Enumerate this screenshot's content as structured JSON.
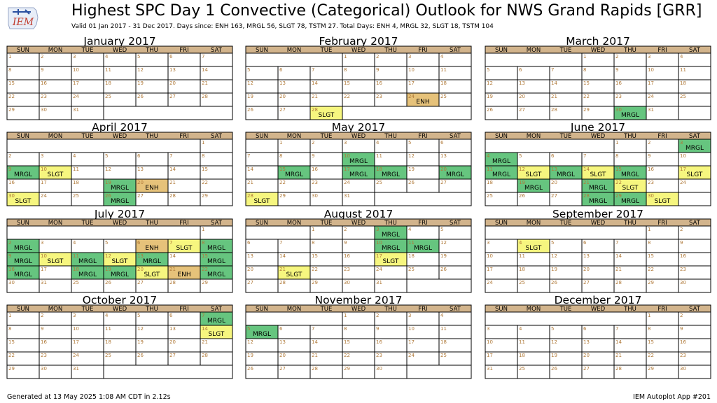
{
  "header": {
    "logo_text": "IEM",
    "title": "Highest SPC Day 1 Convective (Categorical) Outlook for NWS Grand Rapids [GRR]",
    "subtitle": "Valid 01 Jan 2017 - 31 Dec 2017. Days since: ENH 163, MRGL 56, SLGT 78, TSTM 27. Total Days: ENH 4, MRGL 32, SLGT 18, TSTM 104"
  },
  "footer": {
    "left": "Generated at 13 May 2025 1:08 AM CDT in 2.12s",
    "right": "IEM Autoplot App #201"
  },
  "colors": {
    "header_bar": "#d2b48c",
    "MRGL": "#66c57f",
    "SLGT": "#f6f67f",
    "ENH": "#e6c27a",
    "day_number": "#b07a3a"
  },
  "chart_data": {
    "type": "table",
    "year": 2017,
    "weekday_labels": [
      "SUN",
      "MON",
      "TUE",
      "WED",
      "THU",
      "FRI",
      "SAT"
    ],
    "months": [
      {
        "title": "January 2017",
        "start_weekday": 0,
        "days": 31,
        "outlooks": {}
      },
      {
        "title": "February 2017",
        "start_weekday": 3,
        "days": 28,
        "outlooks": {
          "24": "ENH",
          "28": "SLGT"
        }
      },
      {
        "title": "March 2017",
        "start_weekday": 3,
        "days": 31,
        "outlooks": {
          "30": "MRGL"
        }
      },
      {
        "title": "April 2017",
        "start_weekday": 6,
        "days": 30,
        "outlooks": {
          "9": "MRGL",
          "10": "SLGT",
          "19": "MRGL",
          "20": "ENH",
          "26": "MRGL",
          "30": "SLGT"
        }
      },
      {
        "title": "May 2017",
        "start_weekday": 1,
        "days": 31,
        "outlooks": {
          "10": "MRGL",
          "15": "MRGL",
          "17": "MRGL",
          "18": "MRGL",
          "20": "MRGL",
          "28": "SLGT"
        }
      },
      {
        "title": "June 2017",
        "start_weekday": 4,
        "days": 30,
        "outlooks": {
          "3": "MRGL",
          "4": "MRGL",
          "11": "MRGL",
          "12": "SLGT",
          "13": "MRGL",
          "14": "SLGT",
          "15": "MRGL",
          "17": "SLGT",
          "19": "MRGL",
          "21": "MRGL",
          "22": "SLGT",
          "28": "MRGL",
          "29": "MRGL",
          "30": "SLGT"
        }
      },
      {
        "title": "July 2017",
        "start_weekday": 6,
        "days": 31,
        "outlooks": {
          "2": "MRGL",
          "6": "ENH",
          "7": "SLGT",
          "8": "MRGL",
          "9": "MRGL",
          "10": "SLGT",
          "11": "MRGL",
          "12": "SLGT",
          "13": "MRGL",
          "15": "MRGL",
          "16": "MRGL",
          "18": "MRGL",
          "19": "MRGL",
          "20": "SLGT",
          "21": "ENH",
          "22": "MRGL",
          "23": "SLGT"
        }
      },
      {
        "title": "August 2017",
        "start_weekday": 2,
        "days": 31,
        "outlooks": {
          "3": "MRGL",
          "10": "MRGL",
          "11": "MRGL",
          "17": "SLGT",
          "21": "SLGT"
        }
      },
      {
        "title": "September 2017",
        "start_weekday": 5,
        "days": 30,
        "outlooks": {
          "4": "SLGT"
        }
      },
      {
        "title": "October 2017",
        "start_weekday": 0,
        "days": 31,
        "outlooks": {
          "7": "MRGL",
          "14": "SLGT"
        }
      },
      {
        "title": "November 2017",
        "start_weekday": 3,
        "days": 30,
        "outlooks": {
          "5": "MRGL"
        }
      },
      {
        "title": "December 2017",
        "start_weekday": 5,
        "days": 31,
        "outlooks": {}
      }
    ]
  }
}
